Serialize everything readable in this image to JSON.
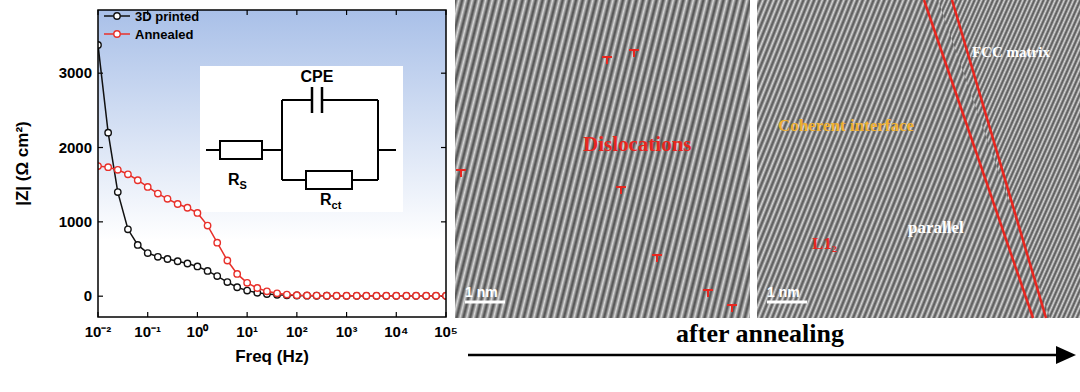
{
  "chart_data": {
    "type": "line",
    "x_label": "Freq (Hz)",
    "y_label": "|Z| (Ω cm²)",
    "log": "x",
    "xlim": [
      0.01,
      100000
    ],
    "xticks": [
      {
        "value": 0.01,
        "label": "10⁻²"
      },
      {
        "value": 0.1,
        "label": "10⁻¹"
      },
      {
        "value": 1,
        "label": "10⁰"
      },
      {
        "value": 10,
        "label": "10¹"
      },
      {
        "value": 100,
        "label": "10²"
      },
      {
        "value": 1000,
        "label": "10³"
      },
      {
        "value": 10000,
        "label": "10⁴"
      },
      {
        "value": 100000,
        "label": "10⁵"
      }
    ],
    "ylim": [
      -280,
      3850
    ],
    "yticks": [
      0,
      1000,
      2000,
      3000
    ],
    "legend": "upper left",
    "x": [
      0.01,
      0.016,
      0.025,
      0.04,
      0.063,
      0.1,
      0.16,
      0.25,
      0.4,
      0.63,
      1,
      1.6,
      2.5,
      4,
      6.3,
      10,
      16,
      25,
      40,
      63,
      100,
      160,
      250,
      400,
      630,
      1000,
      1600,
      2500,
      4000,
      6300,
      10000,
      16000,
      25000,
      40000,
      63000,
      100000
    ],
    "series": [
      {
        "name": "3D printed",
        "color": "#111111",
        "marker": "circle",
        "values": [
          3380,
          2200,
          1400,
          900,
          690,
          580,
          530,
          500,
          470,
          440,
          400,
          340,
          270,
          190,
          120,
          75,
          45,
          28,
          18,
          12,
          9,
          7,
          6,
          6,
          5,
          5,
          5,
          5,
          5,
          5,
          5,
          5,
          5,
          5,
          5,
          5
        ]
      },
      {
        "name": "Annealed",
        "color": "#e8302a",
        "marker": "circle",
        "values": [
          1750,
          1735,
          1700,
          1640,
          1560,
          1470,
          1380,
          1310,
          1240,
          1190,
          1120,
          950,
          720,
          480,
          300,
          180,
          110,
          65,
          38,
          22,
          14,
          10,
          8,
          7,
          6,
          6,
          6,
          6,
          6,
          6,
          6,
          6,
          6,
          6,
          6,
          6
        ]
      }
    ]
  },
  "circuit": {
    "cpe": "CPE",
    "rs": {
      "text": "R",
      "sub": "S"
    },
    "rct": {
      "text": "R",
      "sub": "ct"
    }
  },
  "images": [
    {
      "annotation": "Dislocations",
      "scale_bar": "1 nm"
    },
    {
      "scale_bar": "1 nm",
      "interface": "Coherent interface",
      "matrix": "FCC matrix",
      "relation": "parallel",
      "phase": "L1₂"
    }
  ],
  "arrow_label": "after annealing"
}
